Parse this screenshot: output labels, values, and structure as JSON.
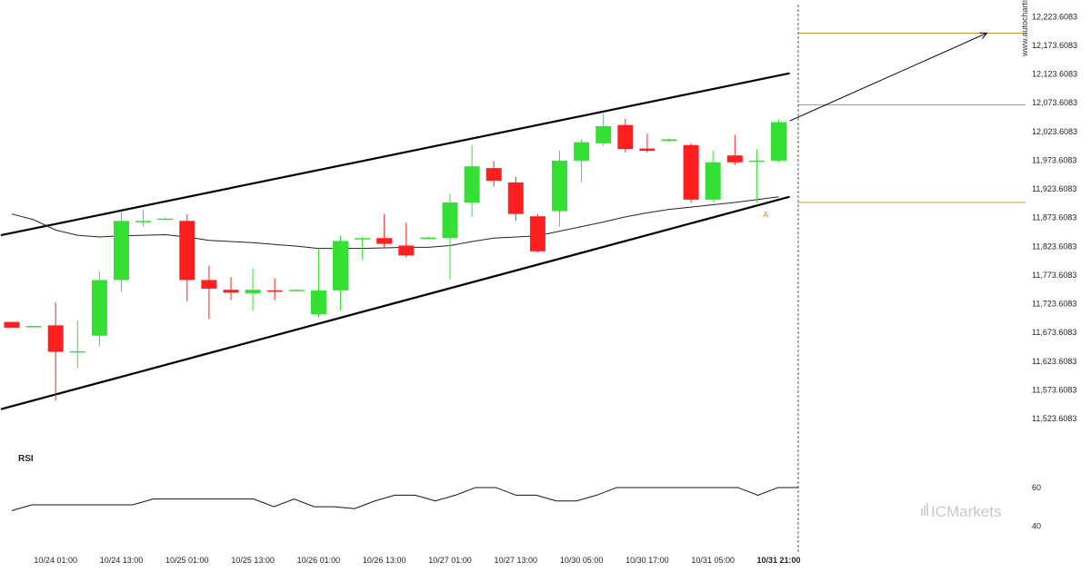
{
  "watermark": "www.autochartist.com",
  "brand": {
    "name": "ICMarkets",
    "prefix": "IC",
    "suffix": "Markets"
  },
  "colors": {
    "up": "#33e033",
    "down": "#ff1f1f",
    "level": "#d9962e",
    "line": "#000000",
    "ma": "#222222"
  },
  "chart_data": [
    {
      "type": "candlestick",
      "y_ticks": [
        "12,223.6083",
        "12,173.6083",
        "12,123.6083",
        "12,073.6083",
        "12,023.6083",
        "11,973.6083",
        "11,923.6083",
        "11,873.6083",
        "11,823.6083",
        "11,773.6083",
        "11,723.6083",
        "11,673.6083",
        "11,623.6083",
        "11,573.6083",
        "11,523.6083"
      ],
      "ylim": [
        11500,
        12240
      ],
      "x_labels": [
        {
          "label": "10/24 01:00",
          "index": 2
        },
        {
          "label": "10/24 13:00",
          "index": 5
        },
        {
          "label": "10/25 01:00",
          "index": 8
        },
        {
          "label": "10/25 13:00",
          "index": 11
        },
        {
          "label": "10/26 01:00",
          "index": 14
        },
        {
          "label": "10/26 13:00",
          "index": 17
        },
        {
          "label": "10/27 01:00",
          "index": 20
        },
        {
          "label": "10/27 13:00",
          "index": 23
        },
        {
          "label": "10/30 05:00",
          "index": 26
        },
        {
          "label": "10/30 17:00",
          "index": 29
        },
        {
          "label": "10/31 05:00",
          "index": 32
        },
        {
          "label": "10/31 21:00",
          "index": 35,
          "bold": true
        }
      ],
      "candles": [
        {
          "o": 11692,
          "h": 11692,
          "l": 11682,
          "c": 11682
        },
        {
          "o": 11685,
          "h": 11685,
          "l": 11685,
          "c": 11685
        },
        {
          "o": 11686,
          "h": 11726,
          "l": 11555,
          "c": 11640
        },
        {
          "o": 11640,
          "h": 11695,
          "l": 11612,
          "c": 11641
        },
        {
          "o": 11668,
          "h": 11780,
          "l": 11650,
          "c": 11765
        },
        {
          "o": 11765,
          "h": 11885,
          "l": 11745,
          "c": 11868
        },
        {
          "o": 11866,
          "h": 11888,
          "l": 11858,
          "c": 11868
        },
        {
          "o": 11872,
          "h": 11874,
          "l": 11870,
          "c": 11872
        },
        {
          "o": 11868,
          "h": 11880,
          "l": 11728,
          "c": 11765
        },
        {
          "o": 11765,
          "h": 11790,
          "l": 11697,
          "c": 11750
        },
        {
          "o": 11748,
          "h": 11770,
          "l": 11730,
          "c": 11743
        },
        {
          "o": 11742,
          "h": 11785,
          "l": 11712,
          "c": 11748
        },
        {
          "o": 11747,
          "h": 11768,
          "l": 11730,
          "c": 11745
        },
        {
          "o": 11748,
          "h": 11749,
          "l": 11747,
          "c": 11748
        },
        {
          "o": 11705,
          "h": 11820,
          "l": 11700,
          "c": 11747
        },
        {
          "o": 11747,
          "h": 11843,
          "l": 11712,
          "c": 11833
        },
        {
          "o": 11836,
          "h": 11840,
          "l": 11800,
          "c": 11838
        },
        {
          "o": 11838,
          "h": 11880,
          "l": 11820,
          "c": 11828
        },
        {
          "o": 11825,
          "h": 11865,
          "l": 11805,
          "c": 11808
        },
        {
          "o": 11839,
          "h": 11841,
          "l": 11837,
          "c": 11839
        },
        {
          "o": 11838,
          "h": 11915,
          "l": 11766,
          "c": 11900
        },
        {
          "o": 11900,
          "h": 12000,
          "l": 11875,
          "c": 11963
        },
        {
          "o": 11960,
          "h": 11972,
          "l": 11928,
          "c": 11938
        },
        {
          "o": 11935,
          "h": 11945,
          "l": 11868,
          "c": 11880
        },
        {
          "o": 11876,
          "h": 11880,
          "l": 11813,
          "c": 11815
        },
        {
          "o": 11885,
          "h": 11990,
          "l": 11858,
          "c": 11973
        },
        {
          "o": 11973,
          "h": 12010,
          "l": 11935,
          "c": 12005
        },
        {
          "o": 12003,
          "h": 12055,
          "l": 11998,
          "c": 12033
        },
        {
          "o": 12035,
          "h": 12046,
          "l": 11987,
          "c": 11993
        },
        {
          "o": 11994,
          "h": 12020,
          "l": 11987,
          "c": 11990
        },
        {
          "o": 12010,
          "h": 12012,
          "l": 12008,
          "c": 12010
        },
        {
          "o": 12000,
          "h": 12003,
          "l": 11900,
          "c": 11905
        },
        {
          "o": 11905,
          "h": 11990,
          "l": 11900,
          "c": 11970
        },
        {
          "o": 11982,
          "h": 12018,
          "l": 11965,
          "c": 11970
        },
        {
          "o": 11973,
          "h": 11993,
          "l": 11900,
          "c": 11973
        },
        {
          "o": 11973,
          "h": 12045,
          "l": 11970,
          "c": 12040
        }
      ],
      "moving_average": [
        11880,
        11870,
        11852,
        11843,
        11840,
        11842,
        11843,
        11844,
        11840,
        11834,
        11832,
        11830,
        11827,
        11824,
        11820,
        11820,
        11820,
        11821,
        11822,
        11822,
        11825,
        11832,
        11838,
        11840,
        11842,
        11850,
        11858,
        11866,
        11875,
        11882,
        11888,
        11892,
        11896,
        11900,
        11905,
        11910
      ],
      "channel": {
        "upper": {
          "from": {
            "index": -0.5,
            "y": 11843
          },
          "to": {
            "index": 35.5,
            "y": 12125
          }
        },
        "lower": {
          "from": {
            "index": -0.5,
            "y": 11540
          },
          "to": {
            "index": 35.5,
            "y": 11910
          }
        }
      },
      "levels": [
        12195,
        12070,
        11900
      ],
      "projection": {
        "from": {
          "index": 35.5,
          "y": 12042
        },
        "to": {
          "index": 44.5,
          "y": 12195
        }
      },
      "marker": {
        "label": "A",
        "index": 34.4,
        "y": 11890
      }
    },
    {
      "type": "line",
      "label": "RSI",
      "y_ticks": [
        "60",
        "40"
      ],
      "ylim": [
        34,
        68
      ],
      "values": [
        48,
        51,
        51,
        51,
        51,
        51,
        51,
        54,
        54,
        54,
        54,
        54,
        54,
        50,
        54,
        50,
        50,
        49,
        53,
        56,
        56,
        53,
        56,
        60,
        60,
        56,
        56,
        53,
        53,
        56,
        60,
        60,
        60,
        60,
        60,
        60,
        60,
        56,
        60,
        60
      ]
    }
  ]
}
